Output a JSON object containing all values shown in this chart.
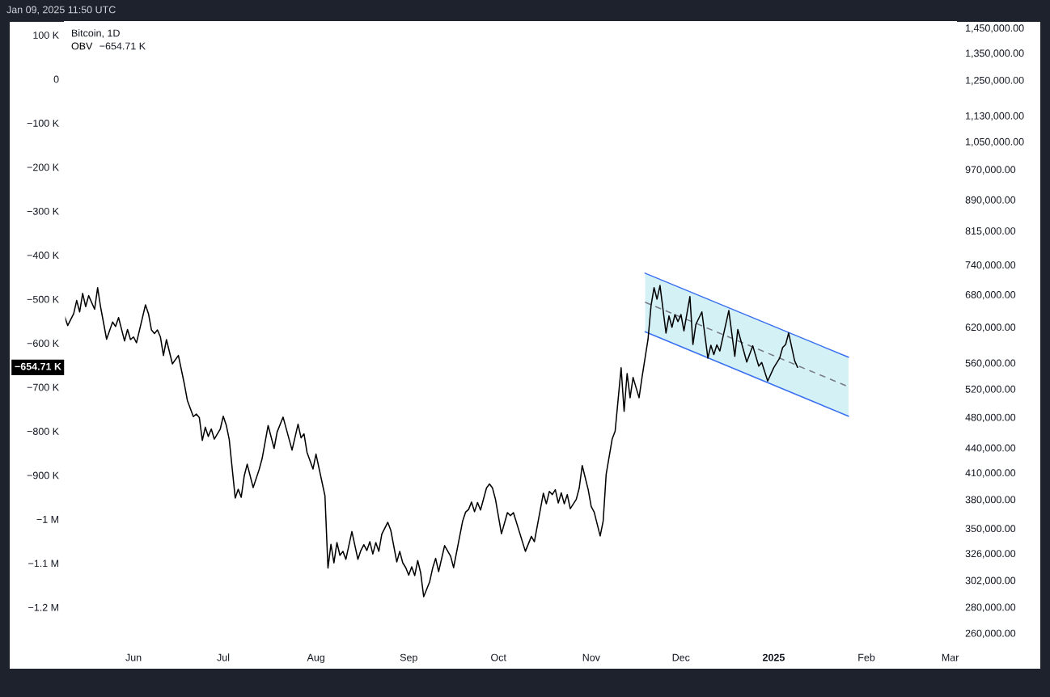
{
  "chart_data": {
    "type": "line",
    "title": "Bitcoin, 1D",
    "annotations": [
      "Jan 09, 2025 11:50 UTC",
      "−654.71 K",
      "−654.71 K"
    ],
    "xlim": [
      "2024-05-09",
      "2025-03-03"
    ],
    "xticks": [
      {
        "value": "2024-06-01",
        "label": "Jun"
      },
      {
        "value": "2024-07-01",
        "label": "Jul"
      },
      {
        "value": "2024-08-01",
        "label": "Aug"
      },
      {
        "value": "2024-09-01",
        "label": "Sep"
      },
      {
        "value": "2024-10-01",
        "label": "Oct"
      },
      {
        "value": "2024-11-01",
        "label": "Nov"
      },
      {
        "value": "2024-12-01",
        "label": "Dec"
      },
      {
        "value": "2025-01-01",
        "label": "2025"
      },
      {
        "value": "2025-02-01",
        "label": "Feb"
      },
      {
        "value": "2025-03-01",
        "label": "Mar"
      }
    ],
    "ylim": [
      -1290000,
      130000
    ],
    "yticks": [
      {
        "value": 100000,
        "label": "100 K"
      },
      0,
      {
        "value": -100000,
        "label": "−100 K"
      },
      {
        "value": -200000,
        "label": "−200 K"
      },
      {
        "value": -300000,
        "label": "−300 K"
      },
      {
        "value": -400000,
        "label": "−400 K"
      },
      {
        "value": -500000,
        "label": "−500 K"
      },
      {
        "value": -600000,
        "label": "−600 K"
      },
      {
        "value": -700000,
        "label": "−700 K"
      },
      {
        "value": -800000,
        "label": "−800 K"
      },
      {
        "value": -900000,
        "label": "−900 K"
      },
      {
        "value": -1000000,
        "label": "−1 M"
      },
      {
        "value": -1100000,
        "label": "−1.1 M"
      },
      {
        "value": -1200000,
        "label": "−1.2 M"
      }
    ],
    "log": "y2",
    "y2lim": [
      250000,
      1475000
    ],
    "y2ticks": [
      {
        "value": 1450000,
        "label": "1,450,000.00"
      },
      {
        "value": 1350000,
        "label": "1,350,000.00"
      },
      {
        "value": 1250000,
        "label": "1,250,000.00"
      },
      {
        "value": 1130000,
        "label": "1,130,000.00"
      },
      {
        "value": 1050000,
        "label": "1,050,000.00"
      },
      {
        "value": 970000,
        "label": "970,000.00"
      },
      {
        "value": 890000,
        "label": "890,000.00"
      },
      {
        "value": 815000,
        "label": "815,000.00"
      },
      {
        "value": 740000,
        "label": "740,000.00"
      },
      {
        "value": 680000,
        "label": "680,000.00"
      },
      {
        "value": 620000,
        "label": "620,000.00"
      },
      {
        "value": 560000,
        "label": "560,000.00"
      },
      {
        "value": 520000,
        "label": "520,000.00"
      },
      {
        "value": 480000,
        "label": "480,000.00"
      },
      {
        "value": 440000,
        "label": "440,000.00"
      },
      {
        "value": 410000,
        "label": "410,000.00"
      },
      {
        "value": 380000,
        "label": "380,000.00"
      },
      {
        "value": 350000,
        "label": "350,000.00"
      },
      {
        "value": 326000,
        "label": "326,000.00"
      },
      {
        "value": 302000,
        "label": "302,000.00"
      },
      {
        "value": 280000,
        "label": "280,000.00"
      },
      {
        "value": 260000,
        "label": "260,000.00"
      }
    ],
    "legend": "top left",
    "series": [
      {
        "name": "OBV",
        "color": "#000000",
        "x": [
          "2024-05-09",
          "2024-05-10",
          "2024-05-12",
          "2024-05-13",
          "2024-05-14",
          "2024-05-15",
          "2024-05-16",
          "2024-05-17",
          "2024-05-19",
          "2024-05-20",
          "2024-05-21",
          "2024-05-23",
          "2024-05-25",
          "2024-05-26",
          "2024-05-27",
          "2024-05-29",
          "2024-05-30",
          "2024-05-31",
          "2024-06-01",
          "2024-06-02",
          "2024-06-05",
          "2024-06-06",
          "2024-06-07",
          "2024-06-08",
          "2024-06-09",
          "2024-06-10",
          "2024-06-11",
          "2024-06-12",
          "2024-06-14",
          "2024-06-16",
          "2024-06-18",
          "2024-06-19",
          "2024-06-21",
          "2024-06-22",
          "2024-06-23",
          "2024-06-24",
          "2024-06-25",
          "2024-06-26",
          "2024-06-27",
          "2024-06-28",
          "2024-06-30",
          "2024-07-01",
          "2024-07-02",
          "2024-07-03",
          "2024-07-05",
          "2024-07-06",
          "2024-07-07",
          "2024-07-08",
          "2024-07-09",
          "2024-07-11",
          "2024-07-13",
          "2024-07-14",
          "2024-07-16",
          "2024-07-18",
          "2024-07-19",
          "2024-07-21",
          "2024-07-24",
          "2024-07-26",
          "2024-07-27",
          "2024-07-28",
          "2024-07-29",
          "2024-07-31",
          "2024-08-01",
          "2024-08-04",
          "2024-08-05",
          "2024-08-06",
          "2024-08-07",
          "2024-08-08",
          "2024-08-09",
          "2024-08-10",
          "2024-08-11",
          "2024-08-13",
          "2024-08-15",
          "2024-08-16",
          "2024-08-17",
          "2024-08-18",
          "2024-08-19",
          "2024-08-20",
          "2024-08-21",
          "2024-08-22",
          "2024-08-23",
          "2024-08-25",
          "2024-08-26",
          "2024-08-28",
          "2024-08-29",
          "2024-08-30",
          "2024-08-31",
          "2024-09-01",
          "2024-09-02",
          "2024-09-03",
          "2024-09-04",
          "2024-09-05",
          "2024-09-06",
          "2024-09-08",
          "2024-09-09",
          "2024-09-10",
          "2024-09-11",
          "2024-09-13",
          "2024-09-15",
          "2024-09-16",
          "2024-09-19",
          "2024-09-20",
          "2024-09-21",
          "2024-09-22",
          "2024-09-23",
          "2024-09-24",
          "2024-09-25",
          "2024-09-27",
          "2024-09-28",
          "2024-09-29",
          "2024-09-30",
          "2024-10-02",
          "2024-10-04",
          "2024-10-05",
          "2024-10-06",
          "2024-10-10",
          "2024-10-12",
          "2024-10-13",
          "2024-10-16",
          "2024-10-17",
          "2024-10-18",
          "2024-10-19",
          "2024-10-20",
          "2024-10-21",
          "2024-10-22",
          "2024-10-23",
          "2024-10-24",
          "2024-10-25",
          "2024-10-27",
          "2024-10-28",
          "2024-10-29",
          "2024-10-31",
          "2024-11-01",
          "2024-11-02",
          "2024-11-04",
          "2024-11-05",
          "2024-11-06",
          "2024-11-08",
          "2024-11-09",
          "2024-11-11",
          "2024-11-12",
          "2024-11-13",
          "2024-11-14",
          "2024-11-15",
          "2024-11-17",
          "2024-11-18",
          "2024-11-20",
          "2024-11-21",
          "2024-11-22",
          "2024-11-23",
          "2024-11-24",
          "2024-11-26",
          "2024-11-27",
          "2024-11-28",
          "2024-11-29",
          "2024-11-30",
          "2024-12-01",
          "2024-12-02",
          "2024-12-04",
          "2024-12-05",
          "2024-12-06",
          "2024-12-08",
          "2024-12-10",
          "2024-12-11",
          "2024-12-12",
          "2024-12-13",
          "2024-12-14",
          "2024-12-17",
          "2024-12-19",
          "2024-12-20",
          "2024-12-23",
          "2024-12-25",
          "2024-12-27",
          "2024-12-28",
          "2024-12-30",
          "2025-01-01",
          "2025-01-03",
          "2025-01-04",
          "2025-01-05",
          "2025-01-06",
          "2025-01-08",
          "2025-01-09"
        ],
        "values": [
          -540000,
          -560000,
          -533000,
          -503000,
          -529000,
          -487000,
          -517000,
          -492000,
          -523000,
          -474000,
          -518000,
          -591000,
          -552000,
          -562000,
          -542000,
          -595000,
          -569000,
          -592000,
          -586000,
          -599000,
          -513000,
          -533000,
          -570000,
          -578000,
          -570000,
          -586000,
          -628000,
          -592000,
          -647000,
          -628000,
          -693000,
          -730000,
          -767000,
          -761000,
          -769000,
          -821000,
          -791000,
          -812000,
          -795000,
          -818000,
          -795000,
          -766000,
          -786000,
          -819000,
          -952000,
          -932000,
          -950000,
          -902000,
          -875000,
          -928000,
          -887000,
          -862000,
          -787000,
          -839000,
          -802000,
          -768000,
          -843000,
          -784000,
          -815000,
          -806000,
          -848000,
          -886000,
          -852000,
          -947000,
          -1111000,
          -1057000,
          -1099000,
          -1053000,
          -1082000,
          -1073000,
          -1091000,
          -1028000,
          -1091000,
          -1071000,
          -1058000,
          -1071000,
          -1051000,
          -1079000,
          -1053000,
          -1073000,
          -1034000,
          -1007000,
          -1025000,
          -1097000,
          -1073000,
          -1099000,
          -1110000,
          -1127000,
          -1108000,
          -1128000,
          -1094000,
          -1122000,
          -1176000,
          -1142000,
          -1111000,
          -1089000,
          -1119000,
          -1060000,
          -1084000,
          -1110000,
          -1005000,
          -984000,
          -978000,
          -961000,
          -983000,
          -962000,
          -979000,
          -929000,
          -920000,
          -929000,
          -955000,
          -1033000,
          -985000,
          -992000,
          -985000,
          -1073000,
          -1039000,
          -1051000,
          -941000,
          -965000,
          -937000,
          -944000,
          -933000,
          -963000,
          -940000,
          -965000,
          -944000,
          -976000,
          -955000,
          -929000,
          -878000,
          -933000,
          -971000,
          -984000,
          -1038000,
          -1004000,
          -898000,
          -818000,
          -800000,
          -656000,
          -755000,
          -669000,
          -724000,
          -678000,
          -724000,
          -677000,
          -591000,
          -515000,
          -474000,
          -500000,
          -469000,
          -577000,
          -538000,
          -564000,
          -535000,
          -551000,
          -535000,
          -572000,
          -494000,
          -603000,
          -557000,
          -529000,
          -634000,
          -605000,
          -626000,
          -604000,
          -618000,
          -526000,
          -630000,
          -569000,
          -643000,
          -606000,
          -652000,
          -644000,
          -686000,
          -656000,
          -634000,
          -610000,
          -603000,
          -577000,
          -640000,
          -655000
        ]
      },
      {
        "color": "#787b86",
        "line_style": "dashed",
        "x": [
          "2024-11-19",
          "2025-01-26"
        ],
        "values": [
          -507000,
          -699000
        ],
        "lower": [
          -574000,
          -766000
        ],
        "upper": [
          -441000,
          -632000
        ]
      },
      {
        "color": "#3a6ff0",
        "x": [
          "2024-11-19",
          "2025-01-26"
        ],
        "values": [
          -441000,
          -632000
        ]
      },
      {
        "color": "#3a6ff0",
        "x": [
          "2024-11-19",
          "2025-01-26"
        ],
        "values": [
          -574000,
          -766000
        ]
      }
    ]
  }
}
